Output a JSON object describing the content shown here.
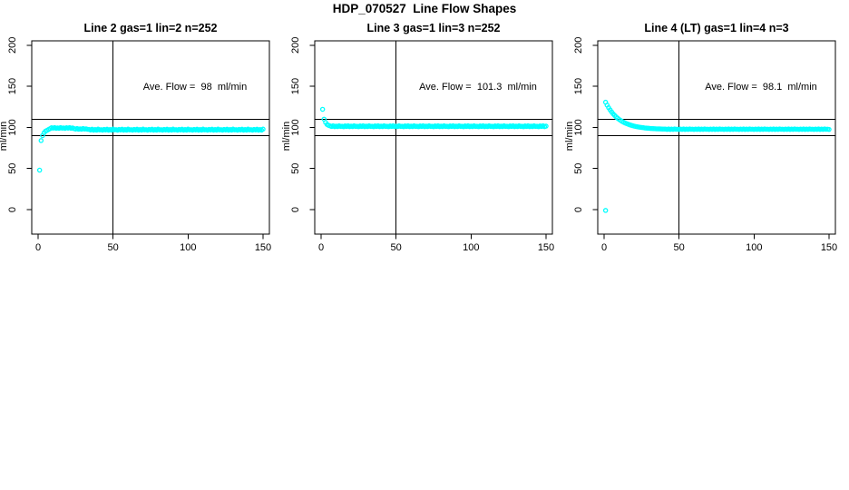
{
  "figure": {
    "title": "HDP_070527  Line Flow Shapes",
    "background": "#FFFFFF",
    "axis_color": "#000000",
    "marker_color": "#00FFFF"
  },
  "chart_data": [
    {
      "name": "line-2",
      "type": "scatter",
      "title": "Line 2 gas=1 lin=2 n=252",
      "annotation": "Ave. Flow =  98  ml/min",
      "ave_flow_ml_min": 98,
      "ylabel": "ml/min",
      "x_ticks": [
        0,
        50,
        100,
        150
      ],
      "y_ticks": [
        0,
        50,
        100,
        150,
        200
      ],
      "xlim": [
        -4,
        154
      ],
      "ylim": [
        -30,
        205
      ],
      "hlines": [
        90,
        110
      ],
      "vlines": [
        50
      ],
      "grid": false,
      "legend": "none",
      "marker": {
        "shape": "circle-open",
        "color": "#00FFFF"
      },
      "series": {
        "x_start": 1,
        "x_step": 1,
        "y": [
          48,
          84,
          90,
          93.5,
          95.5,
          96.5,
          97.5,
          98.5,
          99.6,
          99.1,
          99.8,
          98.9,
          99.4,
          98.9,
          99.8,
          99.1,
          99.3,
          98.8,
          99.6,
          99.1,
          99.8,
          98.9,
          99.4,
          98.5,
          98,
          98.7,
          97.8,
          98.3,
          97.8,
          98.7,
          98,
          98.2,
          97.7,
          97.6,
          96.9,
          97.8,
          96.6,
          97.4,
          96.7,
          97.9,
          97,
          97.2,
          96.6,
          97.6,
          96.9,
          97.8,
          96.6,
          97.4,
          96.7,
          97.9,
          97,
          97.2,
          96.6,
          97.6,
          96.9,
          97.8,
          96.6,
          97.4,
          96.7,
          97.9,
          97,
          97.2,
          96.6,
          97.6,
          96.9,
          97.8,
          96.6,
          97.4,
          96.7,
          97.9,
          97,
          97.2,
          96.6,
          97.6,
          96.9,
          97.8,
          96.6,
          97.4,
          96.7,
          97.9,
          97,
          97.2,
          96.6,
          97.6,
          96.9,
          97.8,
          96.6,
          97.4,
          96.7,
          97.9,
          97,
          97.2,
          96.6,
          97.6,
          96.9,
          97.8,
          96.6,
          97.4,
          96.7,
          97.9,
          97,
          97.2,
          96.6,
          97.6,
          96.9,
          97.8,
          96.6,
          97.4,
          96.7,
          97.9,
          97,
          97.2,
          96.6,
          97.6,
          96.9,
          97.8,
          96.6,
          97.4,
          96.7,
          97.9,
          97,
          97.2,
          96.6,
          97.6,
          96.9,
          97.8,
          96.6,
          97.4,
          96.7,
          97.9,
          97,
          97.2,
          96.6,
          97.6,
          96.9,
          97.8,
          96.6,
          97.4,
          96.7,
          97.9,
          97,
          97.2,
          96.6,
          97.6,
          96.9,
          97.8,
          96.6,
          97.4,
          96.7,
          97.9
        ]
      },
      "outliers": []
    },
    {
      "name": "line-3",
      "type": "scatter",
      "title": "Line 3 gas=1 lin=3 n=252",
      "annotation": "Ave. Flow =  101.3  ml/min",
      "ave_flow_ml_min": 101.3,
      "ylabel": "ml/min",
      "x_ticks": [
        0,
        50,
        100,
        150
      ],
      "y_ticks": [
        0,
        50,
        100,
        150,
        200
      ],
      "xlim": [
        -4,
        154
      ],
      "ylim": [
        -30,
        205
      ],
      "hlines": [
        90,
        110
      ],
      "vlines": [
        50
      ],
      "grid": false,
      "legend": "none",
      "marker": {
        "shape": "circle-open",
        "color": "#00FFFF"
      },
      "series": {
        "x_start": 1,
        "x_step": 1,
        "y": [
          122,
          110,
          106,
          103.5,
          102.5,
          101.8,
          101.1,
          102,
          100.9,
          101.5,
          101,
          102,
          101.2,
          101.4,
          100.8,
          101.8,
          101.1,
          102,
          100.9,
          101.5,
          101,
          102,
          101.2,
          101.4,
          100.8,
          101.8,
          101.1,
          102,
          100.9,
          101.5,
          101,
          102,
          101.2,
          101.4,
          100.8,
          101.8,
          101.1,
          102,
          100.9,
          101.5,
          101,
          102,
          101.2,
          101.4,
          100.8,
          101.8,
          101.1,
          102,
          100.9,
          101.5,
          101,
          102,
          101.2,
          101.4,
          100.8,
          101.8,
          101.1,
          102,
          100.9,
          101.5,
          101,
          102,
          101.2,
          101.4,
          100.8,
          101.8,
          101.1,
          102,
          100.9,
          101.5,
          101,
          102,
          101.2,
          101.4,
          100.8,
          101.8,
          101.1,
          102,
          100.9,
          101.5,
          101,
          102,
          101.2,
          101.4,
          100.8,
          101.8,
          101.1,
          102,
          100.9,
          101.5,
          101,
          102,
          101.2,
          101.4,
          100.8,
          101.8,
          101.1,
          102,
          100.9,
          101.5,
          101,
          102,
          101.2,
          101.4,
          100.8,
          101.8,
          101.1,
          102,
          100.9,
          101.5,
          101,
          102,
          101.2,
          101.4,
          100.8,
          101.8,
          101.1,
          102,
          100.9,
          101.5,
          101,
          102,
          101.2,
          101.4,
          100.8,
          101.8,
          101.1,
          102,
          100.9,
          101.5,
          101,
          102,
          101.2,
          101.4,
          100.8,
          101.8,
          101.1,
          102,
          100.9,
          101.5,
          101,
          102,
          101.2,
          101.4,
          100.8,
          101.8,
          101.1,
          102,
          100.9,
          101.5
        ]
      },
      "outliers": []
    },
    {
      "name": "line-4-lt",
      "type": "scatter",
      "title": "Line 4 (LT) gas=1 lin=4 n=3",
      "annotation": "Ave. Flow =  98.1  ml/min",
      "ave_flow_ml_min": 98.1,
      "ylabel": "ml/min",
      "x_ticks": [
        0,
        50,
        100,
        150
      ],
      "y_ticks": [
        0,
        50,
        100,
        150,
        200
      ],
      "xlim": [
        -4,
        154
      ],
      "ylim": [
        -30,
        205
      ],
      "hlines": [
        90,
        110
      ],
      "vlines": [
        50
      ],
      "grid": false,
      "legend": "none",
      "marker": {
        "shape": "circle-open",
        "color": "#00FFFF"
      },
      "series": {
        "x_start": 1,
        "x_step": 1,
        "y": [
          130.6,
          127.1,
          124,
          121.3,
          118.8,
          116.5,
          114.6,
          112.8,
          111.2,
          109.7,
          108.5,
          107.3,
          106.3,
          105.4,
          104.6,
          103.9,
          103.2,
          102.6,
          102.1,
          101.6,
          101.2,
          100.8,
          100.5,
          100.2,
          99.9,
          99.7,
          99.4,
          99.2,
          99,
          98.9,
          98.7,
          98.6,
          98.5,
          98.4,
          98.3,
          98.2,
          98.2,
          98.1,
          98,
          98,
          98,
          97.6,
          98.1,
          97.5,
          97.9,
          97.6,
          98.1,
          97.7,
          97.8,
          97.5,
          98,
          97.6,
          98.1,
          97.5,
          97.9,
          97.6,
          98.1,
          97.7,
          97.8,
          97.5,
          98,
          97.6,
          98.1,
          97.5,
          97.9,
          97.6,
          98.1,
          97.7,
          97.8,
          97.5,
          98,
          97.6,
          98.1,
          97.5,
          97.9,
          97.6,
          98.1,
          97.7,
          97.8,
          97.5,
          98,
          97.6,
          98.1,
          97.5,
          97.9,
          97.6,
          98.1,
          97.7,
          97.8,
          97.5,
          98,
          97.6,
          98.1,
          97.5,
          97.9,
          97.6,
          98.1,
          97.7,
          97.8,
          97.5,
          98,
          97.6,
          98.1,
          97.5,
          97.9,
          97.6,
          98.1,
          97.7,
          97.8,
          97.5,
          98,
          97.6,
          98.1,
          97.5,
          97.9,
          97.6,
          98.1,
          97.7,
          97.8,
          97.5,
          98,
          97.6,
          98.1,
          97.5,
          97.9,
          97.6,
          98.1,
          97.7,
          97.8,
          97.5,
          98,
          97.6,
          98.1,
          97.5,
          97.9,
          97.6,
          98.1,
          97.7,
          97.8,
          97.5,
          98,
          97.6,
          98.1,
          97.5,
          97.9,
          97.6,
          98.1,
          97.7,
          97.8,
          97.5
        ]
      },
      "outliers": [
        [
          1,
          -1
        ]
      ]
    }
  ]
}
